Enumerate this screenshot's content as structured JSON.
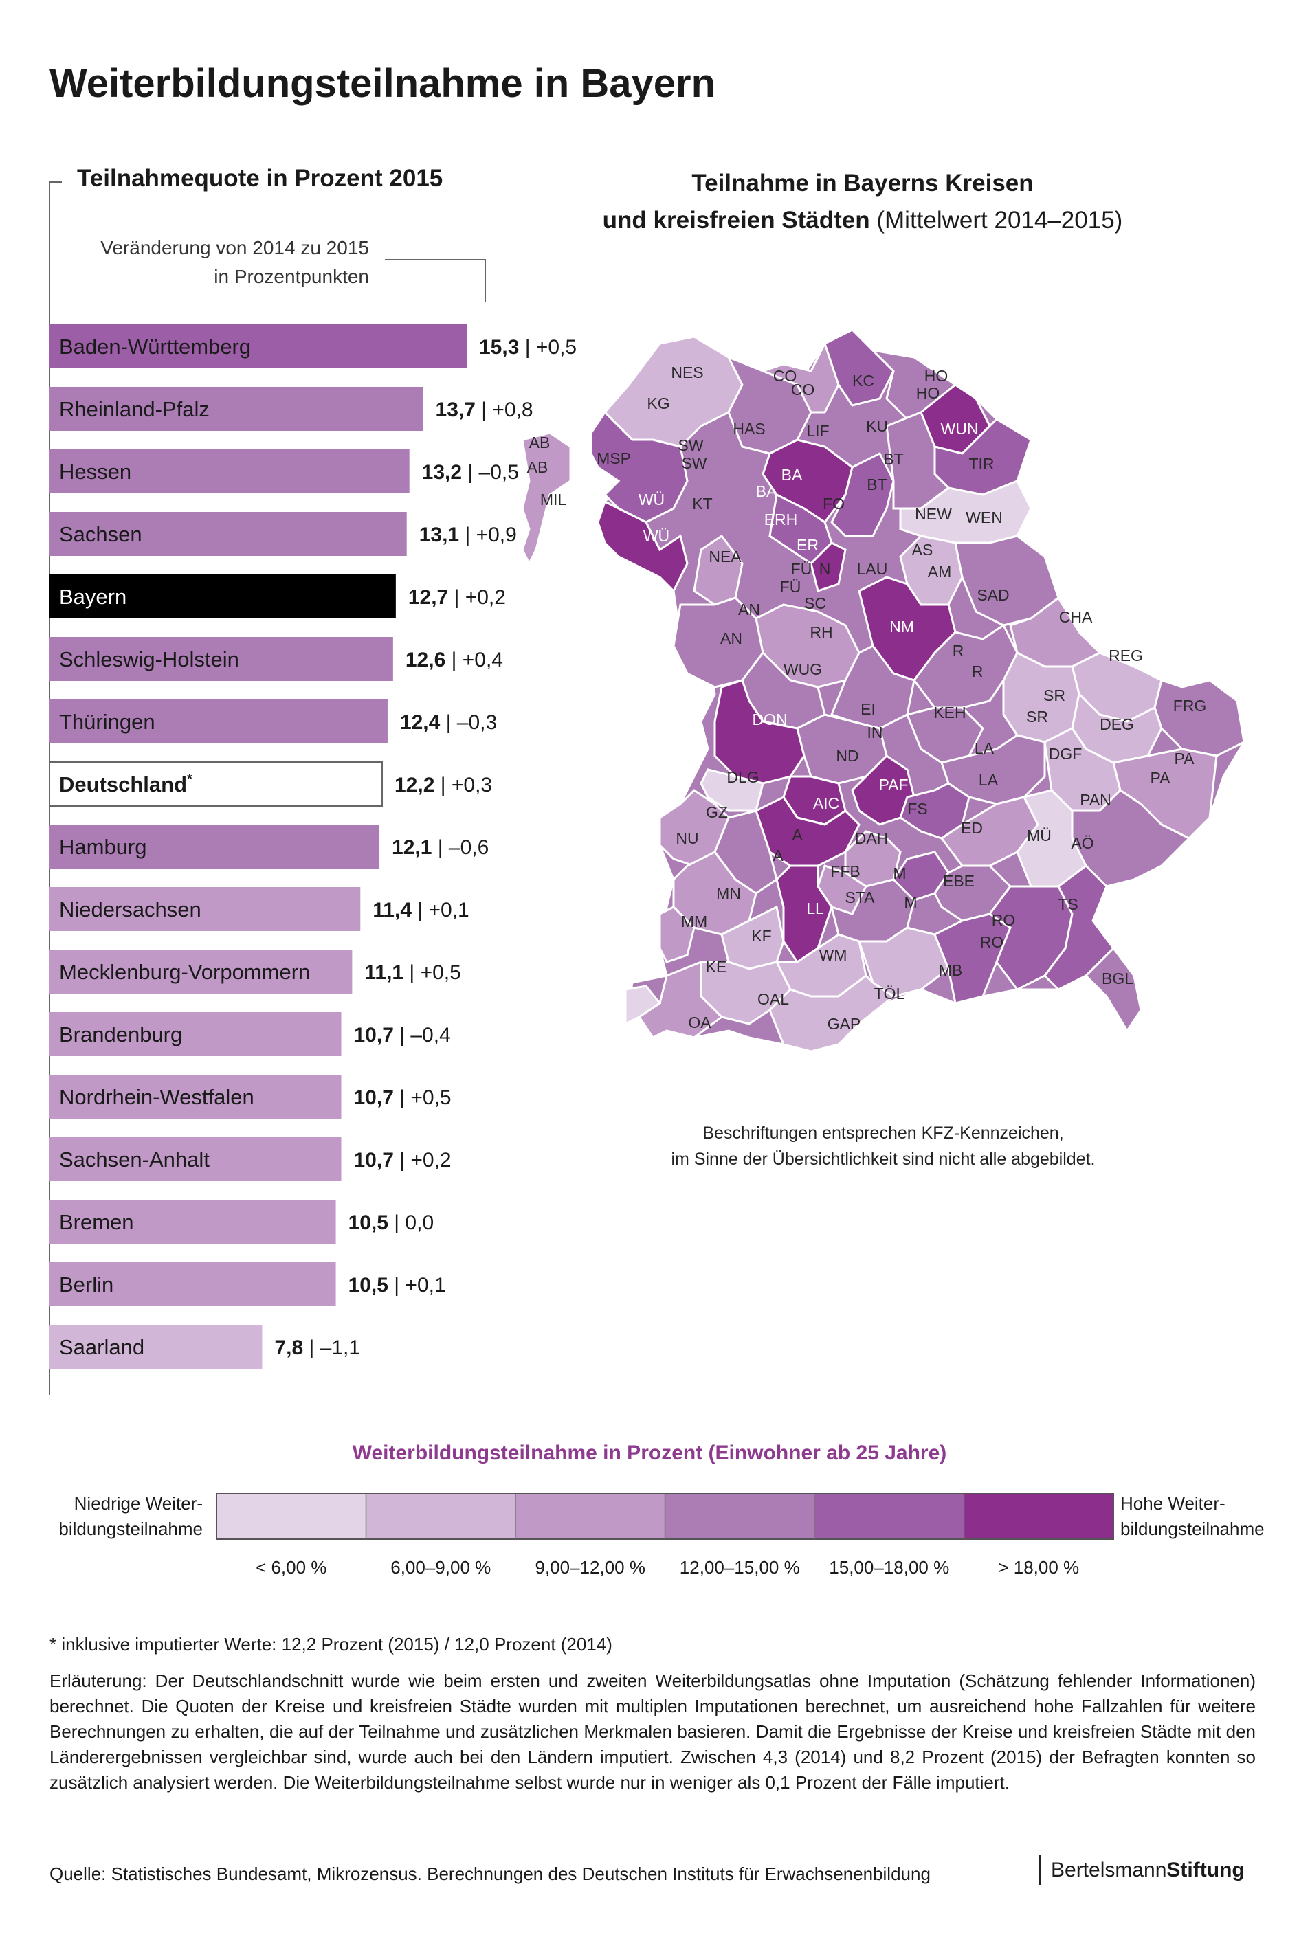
{
  "title": "Weiterbildungsteilnahme in Bayern",
  "bar_chart": {
    "title": "Teilnahmequote in Prozent 2015",
    "change_note_line1": "Veränderung von 2014 zu 2015",
    "change_note_line2": "in Prozentpunkten"
  },
  "map": {
    "title_line1": "Teilnahme in Bayerns Kreisen",
    "title_line2_bold": "und kreisfreien Städten",
    "title_line2_rest": " (Mittelwert 2014–2015)",
    "note_line1": "Beschriftungen entsprechen KFZ-Kennzeichen,",
    "note_line2": "im Sinne der Übersichtlichkeit sind nicht alle abgebildet.",
    "labels": [
      {
        "t": "NES",
        "c": "dark"
      },
      {
        "t": "KG",
        "c": "dark"
      },
      {
        "t": "CO",
        "c": "dark"
      },
      {
        "t": "CO",
        "c": "dark"
      },
      {
        "t": "KC",
        "c": "dark"
      },
      {
        "t": "HO",
        "c": "dark"
      },
      {
        "t": "HO",
        "c": "dark"
      },
      {
        "t": "HAS",
        "c": "dark"
      },
      {
        "t": "LIF",
        "c": "dark"
      },
      {
        "t": "KU",
        "c": "dark"
      },
      {
        "t": "WUN",
        "c": "white"
      },
      {
        "t": "AB",
        "c": "dark"
      },
      {
        "t": "AB",
        "c": "dark"
      },
      {
        "t": "MSP",
        "c": "dark"
      },
      {
        "t": "SW",
        "c": "dark"
      },
      {
        "t": "SW",
        "c": "dark"
      },
      {
        "t": "BA",
        "c": "white"
      },
      {
        "t": "BT",
        "c": "dark"
      },
      {
        "t": "TIR",
        "c": "dark"
      },
      {
        "t": "BT",
        "c": "dark"
      },
      {
        "t": "MIL",
        "c": "dark"
      },
      {
        "t": "WÜ",
        "c": "white"
      },
      {
        "t": "KT",
        "c": "dark"
      },
      {
        "t": "BA",
        "c": "white"
      },
      {
        "t": "FO",
        "c": "dark"
      },
      {
        "t": "ERH",
        "c": "white"
      },
      {
        "t": "NEW",
        "c": "dark"
      },
      {
        "t": "WEN",
        "c": "dark"
      },
      {
        "t": "WÜ",
        "c": "white"
      },
      {
        "t": "ER",
        "c": "white"
      },
      {
        "t": "NEA",
        "c": "dark"
      },
      {
        "t": "FÜ",
        "c": "dark"
      },
      {
        "t": "N",
        "c": "dark"
      },
      {
        "t": "AS",
        "c": "dark"
      },
      {
        "t": "LAU",
        "c": "dark"
      },
      {
        "t": "AM",
        "c": "dark"
      },
      {
        "t": "FÜ",
        "c": "dark"
      },
      {
        "t": "SC",
        "c": "dark"
      },
      {
        "t": "SAD",
        "c": "dark"
      },
      {
        "t": "AN",
        "c": "dark"
      },
      {
        "t": "CHA",
        "c": "dark"
      },
      {
        "t": "RH",
        "c": "dark"
      },
      {
        "t": "NM",
        "c": "white"
      },
      {
        "t": "AN",
        "c": "dark"
      },
      {
        "t": "R",
        "c": "dark"
      },
      {
        "t": "REG",
        "c": "dark"
      },
      {
        "t": "WUG",
        "c": "dark"
      },
      {
        "t": "R",
        "c": "dark"
      },
      {
        "t": "SR",
        "c": "dark"
      },
      {
        "t": "FRG",
        "c": "dark"
      },
      {
        "t": "EI",
        "c": "dark"
      },
      {
        "t": "KEH",
        "c": "dark"
      },
      {
        "t": "DON",
        "c": "white"
      },
      {
        "t": "SR",
        "c": "dark"
      },
      {
        "t": "IN",
        "c": "dark"
      },
      {
        "t": "DEG",
        "c": "dark"
      },
      {
        "t": "LA",
        "c": "dark"
      },
      {
        "t": "ND",
        "c": "dark"
      },
      {
        "t": "DGF",
        "c": "dark"
      },
      {
        "t": "PA",
        "c": "dark"
      },
      {
        "t": "DLG",
        "c": "dark"
      },
      {
        "t": "LA",
        "c": "dark"
      },
      {
        "t": "PAF",
        "c": "white"
      },
      {
        "t": "PA",
        "c": "dark"
      },
      {
        "t": "AIC",
        "c": "white"
      },
      {
        "t": "FS",
        "c": "dark"
      },
      {
        "t": "GZ",
        "c": "dark"
      },
      {
        "t": "PAN",
        "c": "dark"
      },
      {
        "t": "ED",
        "c": "dark"
      },
      {
        "t": "NU",
        "c": "dark"
      },
      {
        "t": "A",
        "c": "dark"
      },
      {
        "t": "DAH",
        "c": "dark"
      },
      {
        "t": "MÜ",
        "c": "dark"
      },
      {
        "t": "AÖ",
        "c": "dark"
      },
      {
        "t": "A",
        "c": "dark"
      },
      {
        "t": "FFB",
        "c": "dark"
      },
      {
        "t": "M",
        "c": "dark"
      },
      {
        "t": "EBE",
        "c": "dark"
      },
      {
        "t": "MN",
        "c": "dark"
      },
      {
        "t": "STA",
        "c": "dark"
      },
      {
        "t": "TS",
        "c": "dark"
      },
      {
        "t": "M",
        "c": "dark"
      },
      {
        "t": "LL",
        "c": "white"
      },
      {
        "t": "MM",
        "c": "dark"
      },
      {
        "t": "RO",
        "c": "dark"
      },
      {
        "t": "RO",
        "c": "dark"
      },
      {
        "t": "KF",
        "c": "dark"
      },
      {
        "t": "WM",
        "c": "dark"
      },
      {
        "t": "KE",
        "c": "dark"
      },
      {
        "t": "MB",
        "c": "dark"
      },
      {
        "t": "BGL",
        "c": "dark"
      },
      {
        "t": "TÖL",
        "c": "dark"
      },
      {
        "t": "OAL",
        "c": "dark"
      },
      {
        "t": "OA",
        "c": "dark"
      },
      {
        "t": "GAP",
        "c": "dark"
      }
    ]
  },
  "legend": {
    "title": "Weiterbildungsteilnahme in Prozent (Einwohner ab 25 Jahre)",
    "low_line1": "Niedrige Weiter-",
    "low_line2": "bildungsteilnahme",
    "high_line1": "Hohe Weiter-",
    "high_line2": "bildungsteilnahme",
    "classes": [
      {
        "label": "< 6,00 %",
        "color": "#e3d4e7"
      },
      {
        "label": "6,00–9,00 %",
        "color": "#d2b6d8"
      },
      {
        "label": "9,00–12,00 %",
        "color": "#c099c7"
      },
      {
        "label": "12,00–15,00 %",
        "color": "#ac7db5"
      },
      {
        "label": "15,00–18,00 %",
        "color": "#9c5ea6"
      },
      {
        "label": "> 18,00 %",
        "color": "#8c2f8c"
      }
    ]
  },
  "chart_data": {
    "type": "bar",
    "orientation": "horizontal",
    "title": "Teilnahmequote in Prozent 2015",
    "xlabel": "",
    "ylabel": "",
    "xlim": [
      0,
      16
    ],
    "categories": [
      "Baden-Württemberg",
      "Rheinland-Pfalz",
      "Hessen",
      "Sachsen",
      "Bayern",
      "Schleswig-Holstein",
      "Thüringen",
      "Deutschland",
      "Hamburg",
      "Niedersachsen",
      "Mecklenburg-Vorpommern",
      "Brandenburg",
      "Nordrhein-Westfalen",
      "Sachsen-Anhalt",
      "Bremen",
      "Berlin",
      "Saarland"
    ],
    "values": [
      15.3,
      13.7,
      13.2,
      13.1,
      12.7,
      12.6,
      12.4,
      12.2,
      12.1,
      11.4,
      11.1,
      10.7,
      10.7,
      10.7,
      10.5,
      10.5,
      7.8
    ],
    "value_labels": [
      "15,3",
      "13,7",
      "13,2",
      "13,1",
      "12,7",
      "12,6",
      "12,4",
      "12,2",
      "12,1",
      "11,4",
      "11,1",
      "10,7",
      "10,7",
      "10,7",
      "10,5",
      "10,5",
      "7,8"
    ],
    "changes": [
      0.5,
      0.8,
      -0.5,
      0.9,
      0.2,
      0.4,
      -0.3,
      0.3,
      -0.6,
      0.1,
      0.5,
      -0.4,
      0.5,
      0.2,
      0.0,
      0.1,
      -1.1
    ],
    "change_labels": [
      "+0,5",
      "+0,8",
      "–0,5",
      "+0,9",
      "+0,2",
      "+0,4",
      "–0,3",
      "+0,3",
      "–0,6",
      "+0,1",
      "+0,5",
      "–0,4",
      "+0,5",
      "+0,2",
      "0,0",
      "+0,1",
      "–1,1"
    ],
    "highlight": "Bayern",
    "outlined": "Deutschland",
    "outlined_marker": "*",
    "footnote": "* inklusive imputierter Werte: 12,2 Prozent (2015) / 12,0 Prozent (2014)"
  },
  "explanation": "Erläuterung: Der Deutschlandschnitt wurde wie beim ersten und zweiten Weiterbildungsatlas ohne Imputation (Schätzung fehlender Informationen) berechnet. Die Quoten der Kreise und kreisfreien Städte wurden mit multiplen Imputationen berechnet, um ausreichend hohe Fallzahlen für weitere Berechnungen zu erhalten, die auf der Teilnahme und zusätzlichen Merkmalen basieren. Damit die Ergebnisse der Kreise und kreisfreien Städte mit den Länderergebnissen vergleichbar sind, wurde auch bei den Ländern imputiert. Zwischen 4,3 (2014) und 8,2 Prozent (2015) der Befragten konnten so zusätzlich analysiert werden. Die Weiterbildungsteilnahme selbst wurde nur in weniger als 0,1 Prozent der Fälle imputiert.",
  "source": "Quelle: Statistisches Bundesamt, Mikrozensus. Berechnungen des Deutschen Instituts für Erwachsenenbildung",
  "brand_regular": "Bertelsmann",
  "brand_bold": "Stiftung"
}
